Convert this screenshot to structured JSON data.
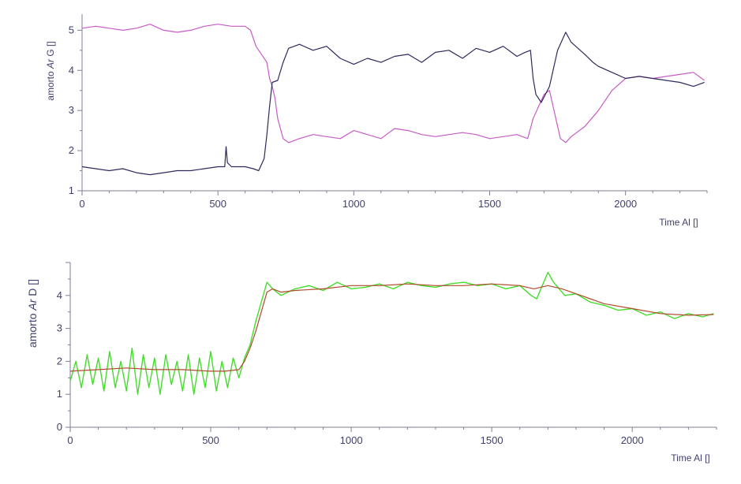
{
  "chart_data": [
    {
      "type": "line",
      "ylabel_parts": [
        "amorto ",
        "Ar",
        " G []"
      ],
      "xlabel": "Time Al []",
      "xlim": [
        0,
        2300
      ],
      "ylim": [
        1,
        5.4
      ],
      "xticks": [
        0,
        500,
        1000,
        1500,
        2000
      ],
      "yticks": [
        1,
        2,
        3,
        4,
        5
      ],
      "xtick_labels": [
        "0",
        "500",
        "1000",
        "1500",
        "2000"
      ],
      "ytick_labels": [
        "1",
        "2",
        "3",
        "4",
        "5"
      ],
      "grid": false,
      "legend": "none",
      "series": [
        {
          "color": "#c65cc6",
          "x": [
            0,
            50,
            100,
            150,
            200,
            250,
            300,
            350,
            400,
            450,
            500,
            550,
            600,
            620,
            640,
            660,
            680,
            690,
            700,
            710,
            720,
            740,
            760,
            800,
            850,
            900,
            950,
            1000,
            1050,
            1100,
            1150,
            1200,
            1250,
            1300,
            1350,
            1400,
            1450,
            1500,
            1550,
            1600,
            1620,
            1640,
            1660,
            1680,
            1700,
            1720,
            1740,
            1760,
            1780,
            1800,
            1850,
            1900,
            1950,
            2000,
            2050,
            2100,
            2150,
            2200,
            2250,
            2290
          ],
          "y": [
            5.05,
            5.1,
            5.05,
            5.0,
            5.05,
            5.15,
            5.0,
            4.95,
            5.0,
            5.1,
            5.15,
            5.1,
            5.1,
            5.0,
            4.6,
            4.4,
            4.2,
            3.8,
            3.6,
            3.3,
            2.8,
            2.3,
            2.2,
            2.3,
            2.4,
            2.35,
            2.3,
            2.5,
            2.4,
            2.3,
            2.55,
            2.5,
            2.4,
            2.35,
            2.4,
            2.45,
            2.4,
            2.3,
            2.35,
            2.4,
            2.35,
            2.3,
            2.8,
            3.1,
            3.4,
            3.5,
            2.9,
            2.3,
            2.2,
            2.35,
            2.6,
            3.0,
            3.5,
            3.8,
            3.85,
            3.8,
            3.85,
            3.9,
            3.95,
            3.75
          ]
        },
        {
          "color": "#2e2a5c",
          "x": [
            0,
            50,
            100,
            150,
            200,
            250,
            300,
            350,
            400,
            450,
            500,
            525,
            530,
            535,
            550,
            600,
            630,
            650,
            670,
            680,
            690,
            700,
            720,
            740,
            760,
            800,
            850,
            900,
            950,
            1000,
            1050,
            1100,
            1150,
            1200,
            1250,
            1300,
            1350,
            1400,
            1450,
            1500,
            1550,
            1600,
            1630,
            1650,
            1660,
            1670,
            1690,
            1720,
            1750,
            1780,
            1800,
            1850,
            1880,
            1900,
            1950,
            2000,
            2050,
            2100,
            2150,
            2200,
            2250,
            2290
          ],
          "y": [
            1.6,
            1.55,
            1.5,
            1.55,
            1.45,
            1.4,
            1.45,
            1.5,
            1.5,
            1.55,
            1.6,
            1.6,
            2.1,
            1.7,
            1.6,
            1.6,
            1.55,
            1.5,
            1.8,
            2.4,
            3.1,
            3.7,
            3.75,
            4.2,
            4.55,
            4.65,
            4.5,
            4.6,
            4.3,
            4.15,
            4.3,
            4.2,
            4.35,
            4.4,
            4.2,
            4.45,
            4.5,
            4.3,
            4.55,
            4.45,
            4.6,
            4.35,
            4.45,
            4.5,
            3.8,
            3.4,
            3.2,
            3.6,
            4.5,
            4.95,
            4.7,
            4.4,
            4.2,
            4.1,
            3.95,
            3.8,
            3.85,
            3.8,
            3.75,
            3.7,
            3.6,
            3.7
          ]
        }
      ]
    },
    {
      "type": "line",
      "ylabel_parts": [
        "amorto ",
        "Ar",
        " D []"
      ],
      "xlabel": "Time Al []",
      "xlim": [
        0,
        2300
      ],
      "ylim": [
        0,
        5
      ],
      "xticks": [
        0,
        500,
        1000,
        1500,
        2000
      ],
      "yticks": [
        0,
        1,
        2,
        3,
        4
      ],
      "xtick_labels": [
        "0",
        "500",
        "1000",
        "1500",
        "2000"
      ],
      "ytick_labels": [
        "0",
        "1",
        "2",
        "3",
        "4"
      ],
      "grid": false,
      "legend": "none",
      "series": [
        {
          "color": "#44dd2c",
          "x": [
            0,
            20,
            40,
            60,
            80,
            100,
            120,
            140,
            160,
            180,
            200,
            220,
            240,
            260,
            280,
            300,
            320,
            340,
            360,
            380,
            400,
            420,
            440,
            460,
            480,
            500,
            520,
            540,
            560,
            580,
            600,
            620,
            640,
            660,
            680,
            700,
            720,
            750,
            800,
            850,
            900,
            950,
            1000,
            1050,
            1100,
            1150,
            1200,
            1250,
            1300,
            1350,
            1400,
            1450,
            1500,
            1550,
            1600,
            1640,
            1660,
            1680,
            1700,
            1720,
            1740,
            1760,
            1800,
            1850,
            1900,
            1950,
            2000,
            2050,
            2100,
            2150,
            2200,
            2250,
            2290
          ],
          "y": [
            1.4,
            2.0,
            1.2,
            2.2,
            1.3,
            2.1,
            1.1,
            2.3,
            1.2,
            2.0,
            1.1,
            2.4,
            1.0,
            2.2,
            1.2,
            2.1,
            1.0,
            2.2,
            1.3,
            2.0,
            1.1,
            2.2,
            1.0,
            2.1,
            1.2,
            2.3,
            1.1,
            2.0,
            1.2,
            2.1,
            1.5,
            2.1,
            2.5,
            3.2,
            3.8,
            4.4,
            4.2,
            4.0,
            4.2,
            4.3,
            4.15,
            4.4,
            4.2,
            4.25,
            4.35,
            4.2,
            4.4,
            4.3,
            4.25,
            4.35,
            4.4,
            4.3,
            4.35,
            4.2,
            4.3,
            4.0,
            3.9,
            4.3,
            4.7,
            4.4,
            4.2,
            4.0,
            4.05,
            3.8,
            3.7,
            3.55,
            3.6,
            3.4,
            3.5,
            3.3,
            3.45,
            3.35,
            3.45
          ]
        },
        {
          "color": "#b04a2c",
          "x": [
            0,
            100,
            200,
            300,
            400,
            500,
            550,
            600,
            620,
            640,
            660,
            680,
            700,
            720,
            750,
            800,
            900,
            1000,
            1100,
            1200,
            1300,
            1400,
            1500,
            1600,
            1650,
            1700,
            1750,
            1800,
            1850,
            1900,
            2000,
            2100,
            2200,
            2290
          ],
          "y": [
            1.7,
            1.75,
            1.8,
            1.75,
            1.75,
            1.7,
            1.7,
            1.75,
            2.0,
            2.4,
            2.9,
            3.5,
            4.1,
            4.2,
            4.1,
            4.15,
            4.2,
            4.3,
            4.3,
            4.35,
            4.3,
            4.3,
            4.35,
            4.3,
            4.2,
            4.3,
            4.2,
            4.05,
            3.9,
            3.75,
            3.6,
            3.45,
            3.4,
            3.42
          ]
        }
      ]
    }
  ]
}
